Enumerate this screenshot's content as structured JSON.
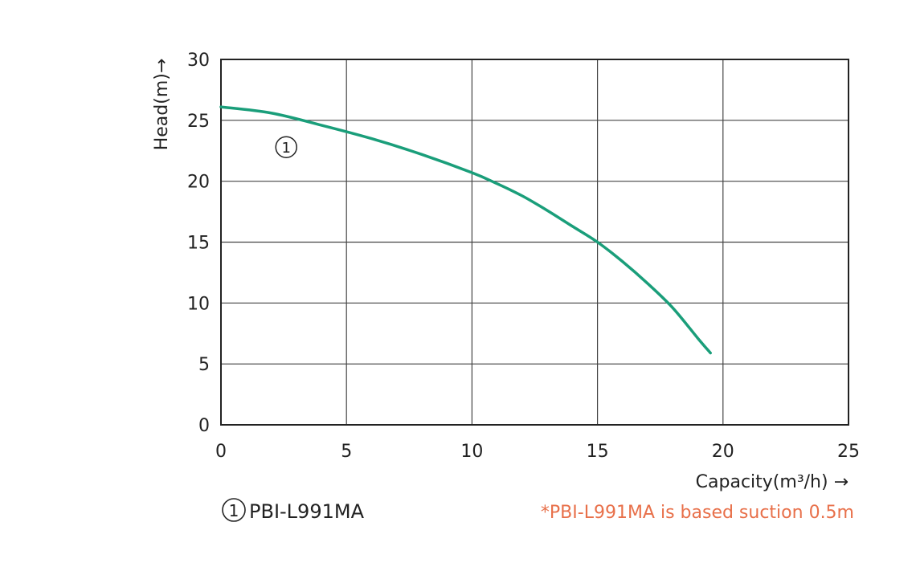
{
  "chart_data": {
    "type": "line",
    "title": "",
    "xlabel": "Capacity(m³/h) →",
    "ylabel": "Head(m)→",
    "xlim": [
      0,
      25
    ],
    "ylim": [
      0,
      30
    ],
    "x_ticks": [
      "0",
      "5",
      "10",
      "15",
      "20",
      "25"
    ],
    "y_ticks": [
      "0",
      "5",
      "10",
      "15",
      "20",
      "25",
      "30"
    ],
    "grid": true,
    "series": [
      {
        "name": "PBI-L991MA",
        "marker": "1",
        "color": "#1a9e7a",
        "points": [
          [
            0,
            26.1
          ],
          [
            2,
            25.6
          ],
          [
            4,
            24.6
          ],
          [
            6,
            23.5
          ],
          [
            8,
            22.2
          ],
          [
            10,
            20.7
          ],
          [
            11,
            19.8
          ],
          [
            12,
            18.8
          ],
          [
            13,
            17.6
          ],
          [
            14,
            16.3
          ],
          [
            15,
            15.0
          ],
          [
            16,
            13.4
          ],
          [
            17,
            11.6
          ],
          [
            18,
            9.6
          ],
          [
            19,
            7.1
          ],
          [
            19.5,
            5.9
          ]
        ]
      }
    ]
  },
  "legend": {
    "marker": "1",
    "label": "PBI-L991MA"
  },
  "note": {
    "text": "*PBI-L991MA  is based suction 0.5m",
    "color": "#e8704a"
  }
}
